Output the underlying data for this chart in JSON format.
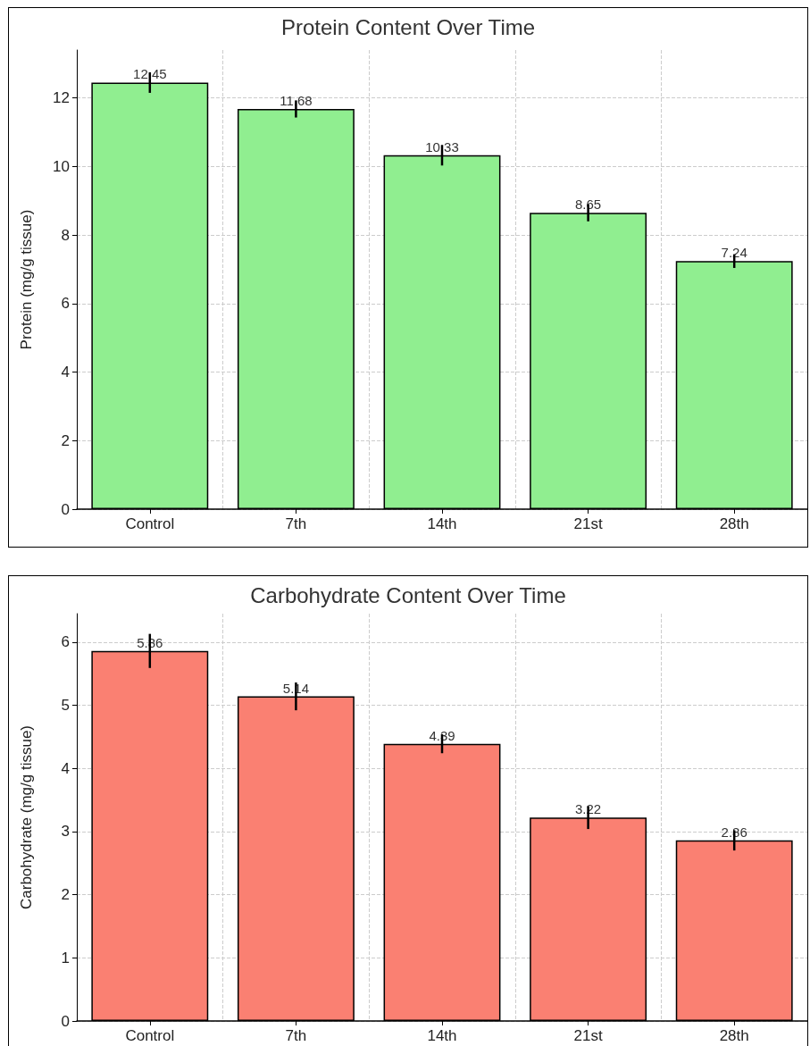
{
  "chart_data": [
    {
      "type": "bar",
      "title": "Protein Content Over Time",
      "ylabel": "Protein (mg/g tissue)",
      "categories": [
        "Control",
        "7th",
        "14th",
        "21st",
        "28th"
      ],
      "values": [
        12.45,
        11.68,
        10.33,
        8.65,
        7.24
      ],
      "errors": [
        0.3,
        0.25,
        0.3,
        0.25,
        0.2
      ],
      "color": "#90ee90",
      "ylim": [
        0,
        13.4
      ],
      "yticks": [
        0,
        2,
        4,
        6,
        8,
        10,
        12
      ],
      "grid": true,
      "data_labels": true
    },
    {
      "type": "bar",
      "title": "Carbohydrate Content Over Time",
      "ylabel": "Carbohydrate (mg/g tissue)",
      "categories": [
        "Control",
        "7th",
        "14th",
        "21st",
        "28th"
      ],
      "values": [
        5.86,
        5.14,
        4.39,
        3.22,
        2.86
      ],
      "errors": [
        0.27,
        0.22,
        0.15,
        0.18,
        0.16
      ],
      "color": "#fa8072",
      "ylim": [
        0,
        6.45
      ],
      "yticks": [
        0,
        1,
        2,
        3,
        4,
        5,
        6
      ],
      "grid": true,
      "data_labels": true
    }
  ]
}
